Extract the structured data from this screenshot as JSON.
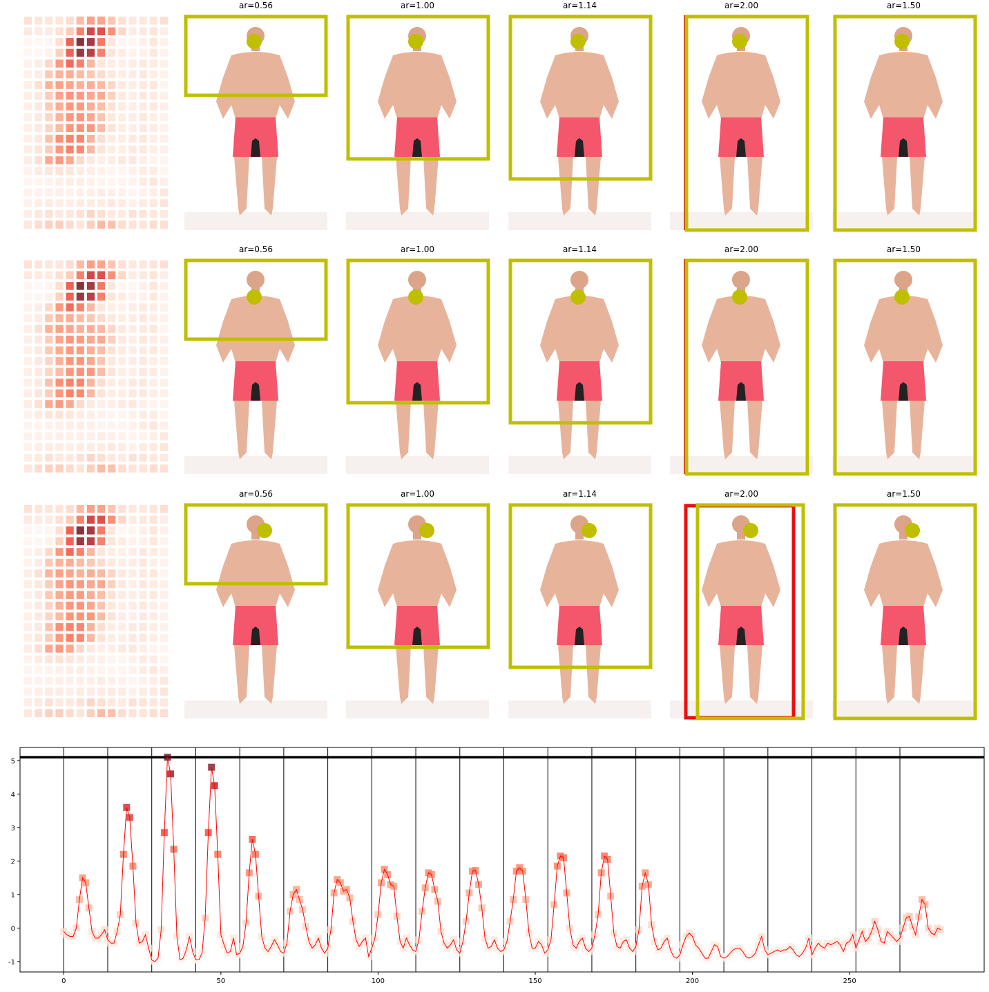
{
  "panels": [
    [
      "ar=0.56",
      "ar=1.00",
      "ar=1.14",
      "ar=2.00",
      "ar=1.50"
    ],
    [
      "ar=0.56",
      "ar=1.00",
      "ar=1.14",
      "ar=2.00",
      "ar=1.50"
    ],
    [
      "ar=0.56",
      "ar=1.00",
      "ar=1.14",
      "ar=2.00",
      "ar=1.50"
    ]
  ],
  "chart_data": {
    "type": "line",
    "color": "red",
    "marker": "square",
    "heatmap_columns": 14,
    "x": [
      0,
      1,
      2,
      3,
      4,
      5,
      6,
      7,
      8,
      9,
      10,
      11,
      12,
      13,
      14,
      15,
      16,
      17,
      18,
      19,
      20,
      21,
      22,
      23,
      24,
      25,
      26,
      27,
      28,
      29,
      30,
      31,
      32,
      33,
      34,
      35,
      36,
      37,
      38,
      39,
      40,
      41,
      42,
      43,
      44,
      45,
      46,
      47,
      48,
      49,
      50,
      51,
      52,
      53,
      54,
      55,
      56,
      57,
      58,
      59,
      60,
      61,
      62,
      63,
      64,
      65,
      66,
      67,
      68,
      69,
      70,
      71,
      72,
      73,
      74,
      75,
      76,
      77,
      78,
      79,
      80,
      81,
      82,
      83,
      84,
      85,
      86,
      87,
      88,
      89,
      90,
      91,
      92,
      93,
      94,
      95,
      96,
      97,
      98,
      99,
      100,
      101,
      102,
      103,
      104,
      105,
      106,
      107,
      108,
      109,
      110,
      111,
      112,
      113,
      114,
      115,
      116,
      117,
      118,
      119,
      120,
      121,
      122,
      123,
      124,
      125,
      126,
      127,
      128,
      129,
      130,
      131,
      132,
      133,
      134,
      135,
      136,
      137,
      138,
      139,
      140,
      141,
      142,
      143,
      144,
      145,
      146,
      147,
      148,
      149,
      150,
      151,
      152,
      153,
      154,
      155,
      156,
      157,
      158,
      159,
      160,
      161,
      162,
      163,
      164,
      165,
      166,
      167,
      168,
      169,
      170,
      171,
      172,
      173,
      174,
      175,
      176,
      177,
      178,
      179,
      180,
      181,
      182,
      183,
      184,
      185,
      186,
      187,
      188,
      189,
      190,
      191,
      192,
      193,
      194,
      195,
      196,
      197,
      198,
      199,
      200,
      201,
      202,
      203,
      204,
      205,
      206,
      207,
      208,
      209,
      210,
      211,
      212,
      213,
      214,
      215,
      216,
      217,
      218,
      219,
      220,
      221,
      222,
      223,
      224,
      225,
      226,
      227,
      228,
      229,
      230,
      231,
      232,
      233,
      234,
      235,
      236,
      237,
      238,
      239,
      240,
      241,
      242,
      243,
      244,
      245,
      246,
      247,
      248,
      249,
      250,
      251,
      252,
      253,
      254,
      255,
      256,
      257,
      258,
      259,
      260,
      261,
      262,
      263,
      264,
      265,
      266,
      267,
      268,
      269,
      270,
      271,
      272,
      273,
      274,
      275,
      276,
      277,
      278,
      279
    ],
    "values": [
      -0.1,
      -0.2,
      -0.25,
      -0.25,
      0.0,
      0.85,
      1.5,
      1.35,
      0.6,
      -0.1,
      -0.3,
      -0.3,
      -0.2,
      -0.05,
      -0.35,
      -0.45,
      -0.45,
      -0.1,
      0.4,
      2.2,
      3.6,
      3.3,
      1.85,
      0.15,
      -0.45,
      -0.4,
      -0.2,
      -0.6,
      -0.95,
      -1.0,
      -0.9,
      -0.05,
      2.85,
      5.1,
      4.6,
      2.35,
      -0.25,
      -0.95,
      -0.9,
      -0.65,
      -0.25,
      -0.7,
      -0.95,
      -0.95,
      -0.75,
      0.3,
      2.85,
      4.8,
      4.25,
      2.2,
      -0.2,
      -0.5,
      -0.75,
      -0.7,
      -0.3,
      -0.8,
      -0.75,
      -0.55,
      0.15,
      1.65,
      2.65,
      2.2,
      0.95,
      -0.25,
      -0.6,
      -0.7,
      -0.55,
      -0.35,
      -0.5,
      -0.7,
      -0.75,
      -0.45,
      0.5,
      1.0,
      1.15,
      0.85,
      0.55,
      0.05,
      -0.4,
      -0.6,
      -0.5,
      -0.3,
      -0.6,
      -0.75,
      -0.6,
      -0.05,
      1.05,
      1.45,
      1.35,
      1.1,
      1.15,
      0.9,
      0.2,
      -0.35,
      -0.55,
      -0.4,
      -0.3,
      -0.85,
      -0.6,
      -0.3,
      0.4,
      1.35,
      1.75,
      1.6,
      1.3,
      1.25,
      0.35,
      -0.4,
      -0.6,
      -0.3,
      -0.5,
      -0.65,
      -0.7,
      -0.35,
      0.5,
      1.2,
      1.65,
      1.6,
      1.15,
      0.8,
      -0.1,
      -0.45,
      -0.6,
      -0.5,
      -0.35,
      -0.65,
      -0.75,
      -0.4,
      0.2,
      1.05,
      1.7,
      1.72,
      1.3,
      0.6,
      -0.3,
      -0.6,
      -0.55,
      -0.35,
      -0.6,
      -0.7,
      -0.65,
      -0.4,
      0.2,
      0.85,
      1.7,
      1.8,
      1.7,
      0.85,
      -0.15,
      -0.6,
      -0.6,
      -0.4,
      -0.5,
      -0.75,
      -0.65,
      -0.35,
      0.7,
      1.85,
      2.15,
      2.1,
      1.05,
      0.0,
      -0.5,
      -0.6,
      -0.4,
      -0.3,
      -0.6,
      -0.7,
      -0.6,
      -0.2,
      0.4,
      1.65,
      2.15,
      2.05,
      0.95,
      -0.15,
      -0.55,
      -0.6,
      -0.4,
      -0.35,
      -0.6,
      -0.7,
      -0.55,
      -0.05,
      1.25,
      1.65,
      1.3,
      0.1,
      -0.4,
      -0.65,
      -0.6,
      -0.4,
      -0.3,
      -0.65,
      -0.85,
      -0.9,
      -0.8,
      -0.5,
      -0.25,
      -0.15,
      -0.25,
      -0.5,
      -0.6,
      -0.75,
      -0.9,
      -0.9,
      -0.7,
      -0.5,
      -0.55,
      -0.85,
      -0.9,
      -0.85,
      -0.75,
      -0.65,
      -0.6,
      -0.6,
      -0.7,
      -0.85,
      -0.9,
      -0.85,
      -0.75,
      -0.5,
      -0.25,
      -0.65,
      -0.8,
      -0.75,
      -0.7,
      -0.65,
      -0.7,
      -0.65,
      -0.65,
      -0.55,
      -0.65,
      -0.8,
      -0.85,
      -0.75,
      -0.6,
      -0.3,
      -0.8,
      -0.6,
      -0.45,
      -0.55,
      -0.6,
      -0.45,
      -0.5,
      -0.45,
      -0.4,
      -0.5,
      -0.7,
      -0.45,
      -0.4,
      -0.2,
      -0.6,
      -0.35,
      -0.1,
      -0.4,
      -0.3,
      -0.1,
      0.2,
      -0.05,
      -0.4,
      -0.45,
      -0.1,
      -0.2,
      -0.3,
      -0.4,
      -0.3,
      0.0,
      0.3,
      0.35,
      0.05,
      -0.2,
      0.35,
      0.85,
      0.7,
      0.0,
      -0.15,
      -0.2,
      0.0,
      -0.05
    ],
    "vlines": [
      0,
      14,
      28,
      42,
      56,
      70,
      84,
      98,
      112,
      126,
      140,
      154,
      168,
      182,
      196,
      210,
      224,
      238,
      252,
      266
    ],
    "hline": 5.1,
    "xlim": [
      -13.9,
      292.8
    ],
    "ylim": [
      -1.31,
      5.39
    ],
    "xticks": [
      0,
      50,
      100,
      150,
      200,
      250
    ],
    "yticks": [
      -1,
      0,
      1,
      2,
      3,
      4,
      5
    ]
  }
}
